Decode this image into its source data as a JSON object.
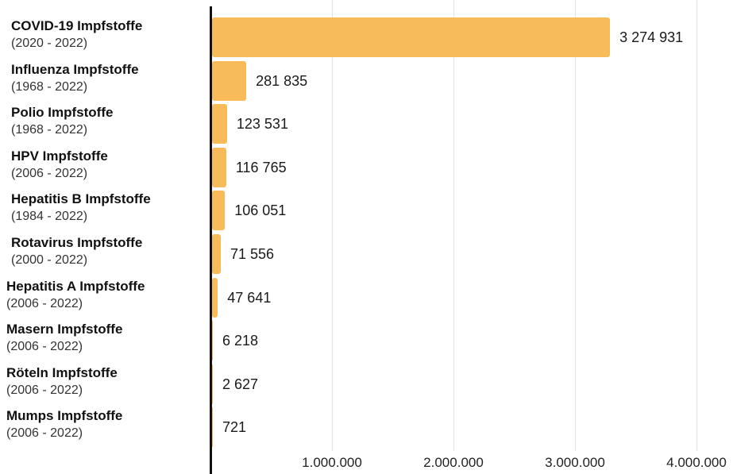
{
  "chart_data": {
    "type": "bar",
    "orientation": "horizontal",
    "categories": [
      {
        "name": "COVID-19 Impfstoffe",
        "range": "(2020 - 2022)"
      },
      {
        "name": "Influenza Impfstoffe",
        "range": "(1968 - 2022)"
      },
      {
        "name": "Polio Impfstoffe",
        "range": "(1968 - 2022)"
      },
      {
        "name": "HPV Impfstoffe",
        "range": "(2006 - 2022)"
      },
      {
        "name": "Hepatitis B Impfstoffe",
        "range": "(1984 - 2022)"
      },
      {
        "name": "Rotavirus Impfstoffe",
        "range": "(2000 - 2022)"
      },
      {
        "name": "Hepatitis A Impfstoffe",
        "range": "(2006 - 2022)"
      },
      {
        "name": "Masern Impfstoffe",
        "range": "(2006 - 2022)"
      },
      {
        "name": "Röteln Impfstoffe",
        "range": "(2006 - 2022)"
      },
      {
        "name": "Mumps Impfstoffe",
        "range": "(2006 - 2022)"
      }
    ],
    "values": [
      3274931,
      281835,
      123531,
      116765,
      106051,
      71556,
      47641,
      6218,
      2627,
      721
    ],
    "value_labels": [
      "3 274 931",
      "281 835",
      "123 531",
      "116 765",
      "106 051",
      "71 556",
      "47 641",
      "6 218",
      "2 627",
      "721"
    ],
    "xlim": [
      0,
      4000000
    ],
    "x_ticks": [
      1000000,
      2000000,
      3000000,
      4000000
    ],
    "x_tick_labels": [
      "1.000.000",
      "2.000.000",
      "3.000.000",
      "4.000.000"
    ],
    "grid": true,
    "bar_color": "#f8bb5a",
    "title": "",
    "xlabel": "",
    "ylabel": ""
  }
}
